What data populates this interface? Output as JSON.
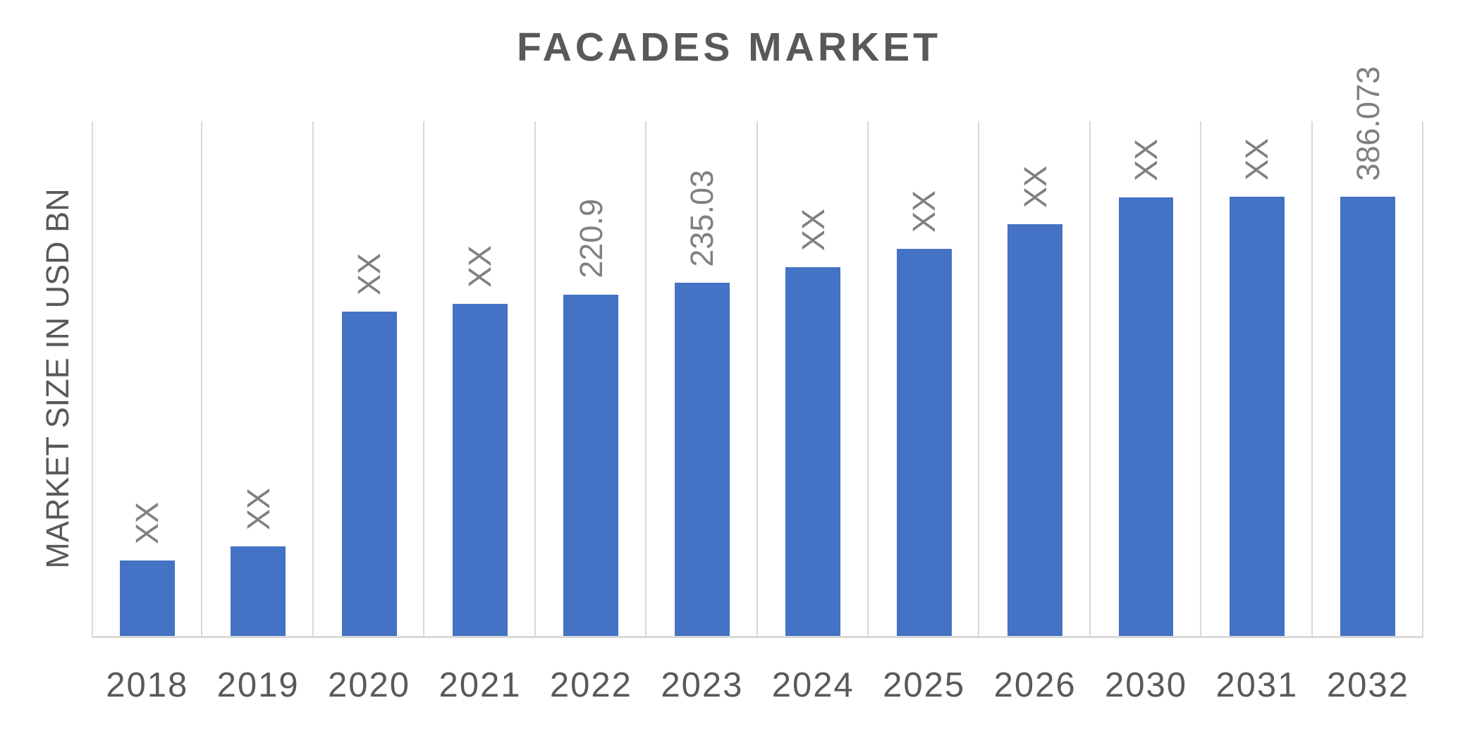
{
  "chart_data": {
    "type": "bar",
    "title": "FACADES MARKET",
    "ylabel": "MARKET SIZE IN USD BN",
    "xlabel": "",
    "categories": [
      "2018",
      "2019",
      "2020",
      "2021",
      "2022",
      "2023",
      "2024",
      "2025",
      "2026",
      "2030",
      "2031",
      "2032"
    ],
    "value_labels": [
      "XX",
      "XX",
      "XX",
      "XX",
      "220.9",
      "235.03",
      "XX",
      "XX",
      "XX",
      "XX",
      "XX",
      "386.073"
    ],
    "values": [
      null,
      null,
      null,
      null,
      220.9,
      235.03,
      null,
      null,
      null,
      null,
      null,
      386.073
    ],
    "bar_height_pct_of_plot": [
      14.7,
      17.4,
      63.0,
      64.5,
      66.3,
      68.6,
      71.6,
      75.2,
      80.0,
      85.2,
      85.3,
      85.3
    ],
    "series_name": "Market size",
    "legend": "none",
    "grid": "vertical-category-separators",
    "data_label_rotation_deg": 90,
    "colors": {
      "bar_fill": "#4472C4",
      "gridline": "#D9D9D9",
      "axis_line": "#D9D9D9",
      "title_text": "#595959",
      "axis_text": "#595959",
      "data_label_text": "#808080",
      "background": "#FFFFFF"
    }
  }
}
